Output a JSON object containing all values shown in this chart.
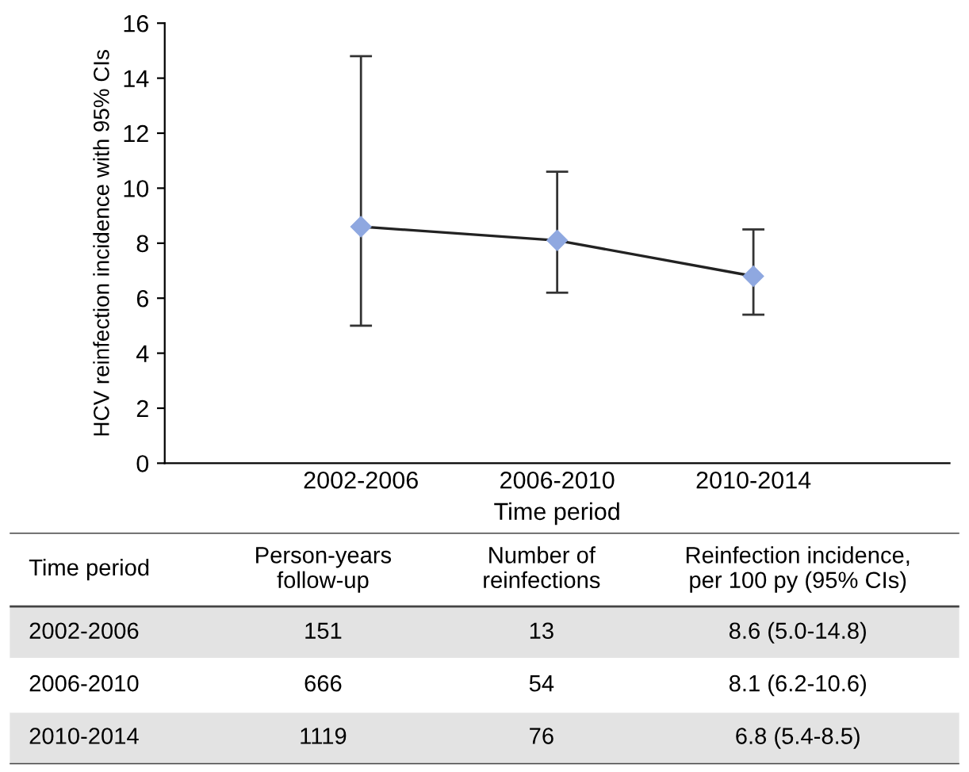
{
  "chart_data": [
    {
      "type": "line",
      "ylabel": "HCV reinfection incidence with 95% CIs",
      "xlabel": "Time period",
      "categories": [
        "2002-2006",
        "2006-2010",
        "2010-2014"
      ],
      "series": [
        {
          "color": "#8fa8e0",
          "values": [
            8.6,
            8.1,
            6.8
          ],
          "errors": [
            [
              5.0,
              14.8
            ],
            [
              6.2,
              10.6
            ],
            [
              5.4,
              8.5
            ]
          ]
        }
      ],
      "ylim": [
        0,
        16
      ],
      "yticks": [
        0,
        2,
        4,
        6,
        8,
        10,
        12,
        14,
        16
      ],
      "marker": "diamond",
      "line_style": "solid",
      "grid": false,
      "legend": false
    },
    {
      "type": "other",
      "data_labels": true,
      "ylabel": "Time period",
      "categories": [
        "2002-2006",
        "2006-2010",
        "2010-2014"
      ],
      "series": [
        {
          "name": "Person-years\nfollow-up",
          "values": [
            151,
            666,
            1119
          ]
        },
        {
          "name": "Number of\nreinfections",
          "values": [
            13,
            54,
            76
          ]
        },
        {
          "name": "Reinfection incidence,\nper 100 py (95% CIs)",
          "values": [
            8.6,
            8.1,
            6.8
          ],
          "value_labels": [
            "8.6 (5.0-14.8)",
            "8.1 (6.2-10.6)",
            "6.8 (5.4-8.5)"
          ]
        }
      ]
    }
  ]
}
